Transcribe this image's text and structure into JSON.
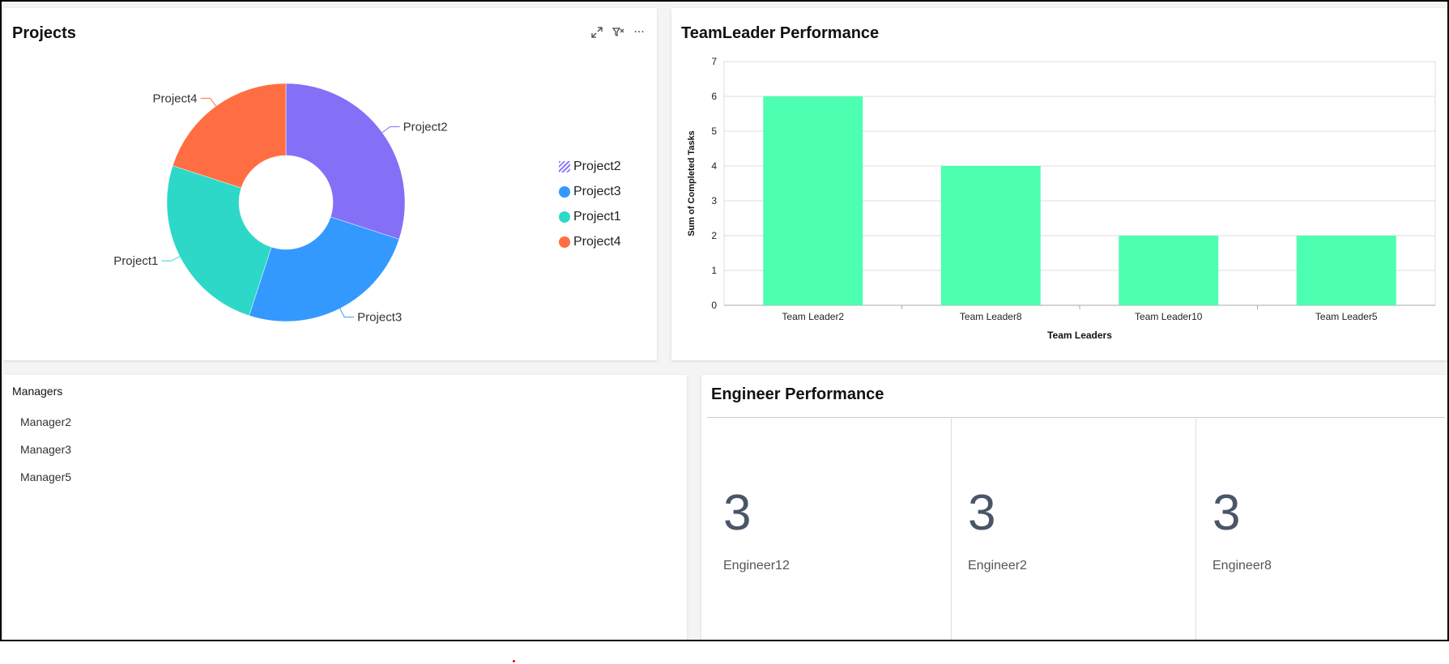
{
  "projects": {
    "title": "Projects",
    "toolbar": {
      "expand_icon": "expand-icon",
      "filter_icon": "filter-clear-icon",
      "more_icon": "more-icon",
      "more_glyph": "···"
    },
    "chart_data": {
      "type": "pie",
      "donut": true,
      "slices": [
        {
          "label": "Project2",
          "value": 30,
          "color": "#8470f7"
        },
        {
          "label": "Project3",
          "value": 25,
          "color": "#3399ff"
        },
        {
          "label": "Project1",
          "value": 25,
          "color": "#2ed8c8"
        },
        {
          "label": "Project4",
          "value": 20,
          "color": "#ff6e42"
        }
      ],
      "legend": [
        {
          "label": "Project2",
          "color": "#8470f7",
          "hatched": true
        },
        {
          "label": "Project3",
          "color": "#3399ff"
        },
        {
          "label": "Project1",
          "color": "#2ed8c8"
        },
        {
          "label": "Project4",
          "color": "#ff6e42"
        }
      ],
      "legend_placement": "right"
    }
  },
  "team_leader": {
    "title": "TeamLeader Performance",
    "chart_data": {
      "type": "bar",
      "categories": [
        "Team Leader2",
        "Team Leader8",
        "Team Leader10",
        "Team Leader5"
      ],
      "values": [
        6,
        4,
        2,
        2
      ],
      "xlabel": "Team Leaders",
      "ylabel": "Sum of Completed Tasks",
      "ylim": [
        0,
        7
      ],
      "yticks": [
        "0",
        "1",
        "2",
        "3",
        "4",
        "5",
        "6",
        "7"
      ],
      "grid": true,
      "bar_color": "#4dffb0"
    }
  },
  "managers": {
    "title": "Managers",
    "items": [
      "Manager2",
      "Manager3",
      "Manager5"
    ]
  },
  "engineer": {
    "title": "Engineer Performance",
    "cards": [
      {
        "value": "3",
        "label": "Engineer12"
      },
      {
        "value": "3",
        "label": "Engineer2"
      },
      {
        "value": "3",
        "label": "Engineer8"
      }
    ]
  }
}
